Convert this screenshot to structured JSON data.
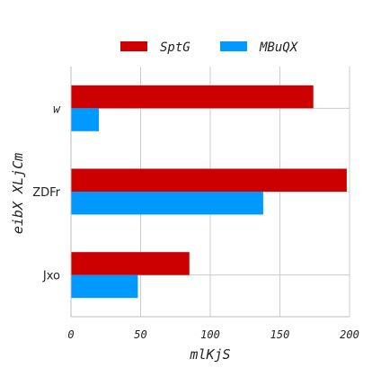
{
  "chart_data": {
    "type": "bar",
    "orientation": "horizontal",
    "categories": [
      "w",
      "ZDFr",
      "Jxo"
    ],
    "series": [
      {
        "name": "SptG",
        "values": [
          174,
          198,
          85
        ],
        "color": "#cc0000"
      },
      {
        "name": "MBuQX",
        "values": [
          20,
          138,
          48
        ],
        "color": "#0099ff"
      }
    ],
    "xlabel": "mlKjS",
    "ylabel": "eibX XLjCm",
    "xlim": [
      0,
      200
    ],
    "xticks": [
      0,
      50,
      100,
      150,
      200
    ],
    "grid": true,
    "legend_position": "top-center"
  },
  "colors": {
    "grid": "#cccccc",
    "axis": "#bbbbbb",
    "text": "#222222"
  }
}
